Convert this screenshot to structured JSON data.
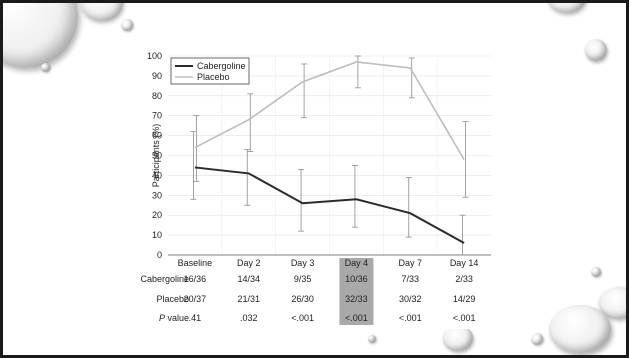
{
  "slide": {
    "background": "#ffffff",
    "frame_color": "#1a1a1a"
  },
  "chart_data": {
    "type": "line",
    "ylabel": "Participants (%)",
    "xlabel": "",
    "ylim": [
      0,
      100
    ],
    "yticks": [
      0,
      10,
      20,
      30,
      40,
      50,
      60,
      70,
      80,
      90,
      100
    ],
    "categories": [
      "Baseline",
      "Day 2",
      "Day 3",
      "Day 4",
      "Day 7",
      "Day 14"
    ],
    "grid": true,
    "legend_position": "top-left",
    "series": [
      {
        "name": "Cabergoline",
        "color": "#2b2b2b",
        "values": [
          44,
          41,
          26,
          28,
          21,
          6
        ],
        "error_upper": [
          62,
          53,
          43,
          45,
          39,
          20
        ],
        "error_lower": [
          28,
          25,
          12,
          14,
          9,
          0
        ]
      },
      {
        "name": "Placebo",
        "color": "#bdbdbd",
        "values": [
          54,
          68,
          87,
          97,
          94,
          48
        ],
        "error_upper": [
          70,
          81,
          96,
          100,
          99,
          67
        ],
        "error_lower": [
          37,
          52,
          69,
          84,
          79,
          29
        ]
      }
    ],
    "table": {
      "rows": [
        {
          "label": "Cabergoline",
          "cells": [
            "16/36",
            "14/34",
            "9/35",
            "10/36",
            "7/33",
            "2/33"
          ]
        },
        {
          "label": "Placebo",
          "cells": [
            "20/37",
            "21/31",
            "26/30",
            "32/33",
            "30/32",
            "14/29"
          ]
        },
        {
          "label_italic": "P",
          "label_rest": " value",
          "cells": [
            ".41",
            ".032",
            "<.001",
            "<.001",
            "<.001",
            "<.001"
          ]
        }
      ],
      "highlight_column": "Day 4",
      "highlight_color": "#a9a9a9"
    }
  }
}
